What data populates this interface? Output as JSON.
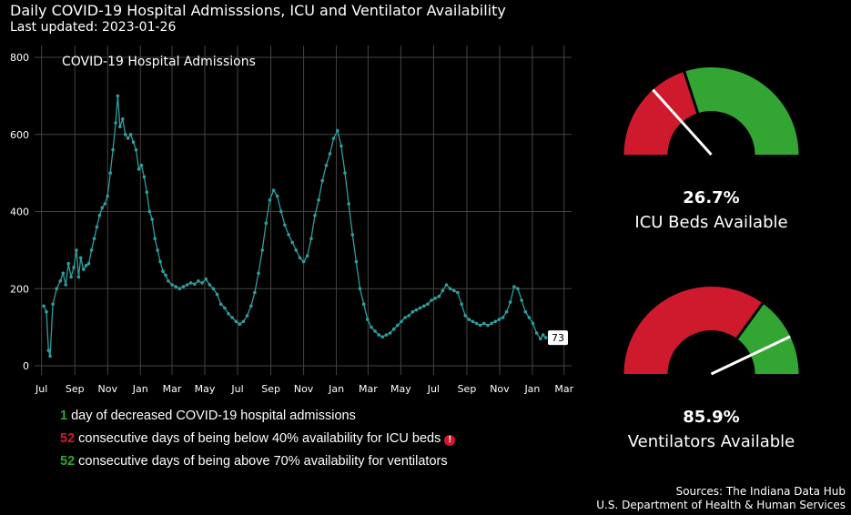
{
  "header": {
    "title": "Daily COVID-19 Hospital Admisssions, ICU and Ventilator Availability",
    "subtitle": "Last updated: 2023-01-26"
  },
  "colors": {
    "line": "#2e9e9c",
    "red": "#cf1a2e",
    "green": "#33a532",
    "grid": "#444444",
    "text": "#ffffff"
  },
  "chart_data": {
    "type": "line",
    "title": "COVID-19 Hospital Admissions",
    "xlabel": "",
    "ylabel": "",
    "ylim": [
      0,
      800
    ],
    "grid": true,
    "yticks": [
      0,
      200,
      400,
      600,
      800
    ],
    "xticks": [
      {
        "label": "Jul",
        "date": "2020-07-01"
      },
      {
        "label": "Sep",
        "date": "2020-09-01"
      },
      {
        "label": "Nov",
        "date": "2020-11-01"
      },
      {
        "label": "Jan",
        "date": "2021-01-01"
      },
      {
        "label": "Mar",
        "date": "2021-03-01"
      },
      {
        "label": "May",
        "date": "2021-05-01"
      },
      {
        "label": "Jul",
        "date": "2021-07-01"
      },
      {
        "label": "Sep",
        "date": "2021-09-01"
      },
      {
        "label": "Nov",
        "date": "2021-11-01"
      },
      {
        "label": "Jan",
        "date": "2022-01-01"
      },
      {
        "label": "Mar",
        "date": "2022-03-01"
      },
      {
        "label": "May",
        "date": "2022-05-01"
      },
      {
        "label": "Jul",
        "date": "2022-07-01"
      },
      {
        "label": "Sep",
        "date": "2022-09-01"
      },
      {
        "label": "Nov",
        "date": "2022-11-01"
      },
      {
        "label": "Jan",
        "date": "2023-01-01"
      },
      {
        "label": "Mar",
        "date": "2023-03-01"
      }
    ],
    "series": [
      {
        "values": [
          [
            "2020-07-05",
            155
          ],
          [
            "2020-07-10",
            140
          ],
          [
            "2020-07-14",
            40
          ],
          [
            "2020-07-17",
            25
          ],
          [
            "2020-07-22",
            160
          ],
          [
            "2020-07-29",
            200
          ],
          [
            "2020-08-05",
            220
          ],
          [
            "2020-08-10",
            240
          ],
          [
            "2020-08-15",
            210
          ],
          [
            "2020-08-20",
            265
          ],
          [
            "2020-08-25",
            230
          ],
          [
            "2020-08-30",
            255
          ],
          [
            "2020-09-04",
            300
          ],
          [
            "2020-09-08",
            230
          ],
          [
            "2020-09-12",
            280
          ],
          [
            "2020-09-17",
            250
          ],
          [
            "2020-09-22",
            260
          ],
          [
            "2020-09-27",
            265
          ],
          [
            "2020-10-02",
            300
          ],
          [
            "2020-10-07",
            330
          ],
          [
            "2020-10-12",
            360
          ],
          [
            "2020-10-17",
            390
          ],
          [
            "2020-10-22",
            410
          ],
          [
            "2020-10-27",
            420
          ],
          [
            "2020-11-01",
            440
          ],
          [
            "2020-11-06",
            500
          ],
          [
            "2020-11-11",
            560
          ],
          [
            "2020-11-16",
            630
          ],
          [
            "2020-11-20",
            700
          ],
          [
            "2020-11-24",
            620
          ],
          [
            "2020-11-29",
            640
          ],
          [
            "2020-12-04",
            600
          ],
          [
            "2020-12-09",
            590
          ],
          [
            "2020-12-14",
            600
          ],
          [
            "2020-12-19",
            580
          ],
          [
            "2020-12-24",
            560
          ],
          [
            "2020-12-29",
            510
          ],
          [
            "2021-01-03",
            520
          ],
          [
            "2021-01-08",
            490
          ],
          [
            "2021-01-13",
            450
          ],
          [
            "2021-01-18",
            400
          ],
          [
            "2021-01-23",
            380
          ],
          [
            "2021-01-28",
            330
          ],
          [
            "2021-02-02",
            300
          ],
          [
            "2021-02-07",
            270
          ],
          [
            "2021-02-12",
            245
          ],
          [
            "2021-02-17",
            235
          ],
          [
            "2021-02-22",
            220
          ],
          [
            "2021-03-01",
            210
          ],
          [
            "2021-03-08",
            205
          ],
          [
            "2021-03-15",
            200
          ],
          [
            "2021-03-22",
            205
          ],
          [
            "2021-03-29",
            210
          ],
          [
            "2021-04-05",
            215
          ],
          [
            "2021-04-12",
            212
          ],
          [
            "2021-04-19",
            220
          ],
          [
            "2021-04-26",
            215
          ],
          [
            "2021-05-03",
            225
          ],
          [
            "2021-05-10",
            210
          ],
          [
            "2021-05-17",
            200
          ],
          [
            "2021-05-24",
            185
          ],
          [
            "2021-05-31",
            160
          ],
          [
            "2021-06-07",
            150
          ],
          [
            "2021-06-14",
            135
          ],
          [
            "2021-06-21",
            125
          ],
          [
            "2021-06-28",
            115
          ],
          [
            "2021-07-05",
            108
          ],
          [
            "2021-07-12",
            115
          ],
          [
            "2021-07-19",
            130
          ],
          [
            "2021-07-26",
            155
          ],
          [
            "2021-08-02",
            190
          ],
          [
            "2021-08-09",
            240
          ],
          [
            "2021-08-16",
            300
          ],
          [
            "2021-08-23",
            370
          ],
          [
            "2021-08-30",
            430
          ],
          [
            "2021-09-06",
            455
          ],
          [
            "2021-09-13",
            440
          ],
          [
            "2021-09-20",
            400
          ],
          [
            "2021-09-27",
            365
          ],
          [
            "2021-10-04",
            340
          ],
          [
            "2021-10-11",
            320
          ],
          [
            "2021-10-18",
            300
          ],
          [
            "2021-10-25",
            280
          ],
          [
            "2021-11-01",
            270
          ],
          [
            "2021-11-08",
            285
          ],
          [
            "2021-11-15",
            330
          ],
          [
            "2021-11-22",
            390
          ],
          [
            "2021-11-29",
            430
          ],
          [
            "2021-12-06",
            480
          ],
          [
            "2021-12-13",
            520
          ],
          [
            "2021-12-20",
            550
          ],
          [
            "2021-12-27",
            590
          ],
          [
            "2022-01-03",
            610
          ],
          [
            "2022-01-10",
            570
          ],
          [
            "2022-01-17",
            500
          ],
          [
            "2022-01-24",
            420
          ],
          [
            "2022-01-31",
            340
          ],
          [
            "2022-02-07",
            270
          ],
          [
            "2022-02-14",
            200
          ],
          [
            "2022-02-21",
            160
          ],
          [
            "2022-02-28",
            120
          ],
          [
            "2022-03-07",
            100
          ],
          [
            "2022-03-14",
            90
          ],
          [
            "2022-03-21",
            80
          ],
          [
            "2022-03-28",
            75
          ],
          [
            "2022-04-04",
            80
          ],
          [
            "2022-04-11",
            85
          ],
          [
            "2022-04-18",
            95
          ],
          [
            "2022-04-25",
            105
          ],
          [
            "2022-05-02",
            115
          ],
          [
            "2022-05-09",
            125
          ],
          [
            "2022-05-16",
            130
          ],
          [
            "2022-05-23",
            140
          ],
          [
            "2022-05-30",
            145
          ],
          [
            "2022-06-06",
            150
          ],
          [
            "2022-06-13",
            155
          ],
          [
            "2022-06-20",
            160
          ],
          [
            "2022-06-27",
            170
          ],
          [
            "2022-07-04",
            175
          ],
          [
            "2022-07-11",
            180
          ],
          [
            "2022-07-18",
            195
          ],
          [
            "2022-07-25",
            210
          ],
          [
            "2022-08-01",
            200
          ],
          [
            "2022-08-08",
            195
          ],
          [
            "2022-08-15",
            190
          ],
          [
            "2022-08-22",
            160
          ],
          [
            "2022-08-29",
            130
          ],
          [
            "2022-09-05",
            120
          ],
          [
            "2022-09-12",
            115
          ],
          [
            "2022-09-19",
            110
          ],
          [
            "2022-09-26",
            105
          ],
          [
            "2022-10-03",
            110
          ],
          [
            "2022-10-10",
            105
          ],
          [
            "2022-10-17",
            110
          ],
          [
            "2022-10-24",
            115
          ],
          [
            "2022-10-31",
            120
          ],
          [
            "2022-11-07",
            125
          ],
          [
            "2022-11-14",
            140
          ],
          [
            "2022-11-21",
            165
          ],
          [
            "2022-11-28",
            205
          ],
          [
            "2022-12-05",
            200
          ],
          [
            "2022-12-12",
            170
          ],
          [
            "2022-12-19",
            140
          ],
          [
            "2022-12-26",
            125
          ],
          [
            "2023-01-02",
            110
          ],
          [
            "2023-01-09",
            85
          ],
          [
            "2023-01-16",
            70
          ],
          [
            "2023-01-21",
            80
          ],
          [
            "2023-01-26",
            73
          ]
        ]
      }
    ],
    "last_value_label": "73"
  },
  "gauges": [
    {
      "percent_text": "26.7%",
      "label": "ICU Beds Available",
      "value": 0.267,
      "threshold": 0.4
    },
    {
      "percent_text": "85.9%",
      "label": "Ventilators Available",
      "value": 0.859,
      "threshold": 0.7
    }
  ],
  "stats": [
    {
      "number": "1",
      "text": " day of decreased COVID-19 hospital admissions",
      "color": "#33a532",
      "alert": false
    },
    {
      "number": "52",
      "text": " consecutive days of being below 40% availability for ICU beds",
      "color": "#cf1a2e",
      "alert": true
    },
    {
      "number": "52",
      "text": " consecutive days of being above 70% availability for ventilators",
      "color": "#33a532",
      "alert": false
    }
  ],
  "alert_icon_glyph": "!",
  "sources": {
    "line1": "Sources: The Indiana Data Hub",
    "line2": "U.S. Department of Health & Human Services"
  }
}
